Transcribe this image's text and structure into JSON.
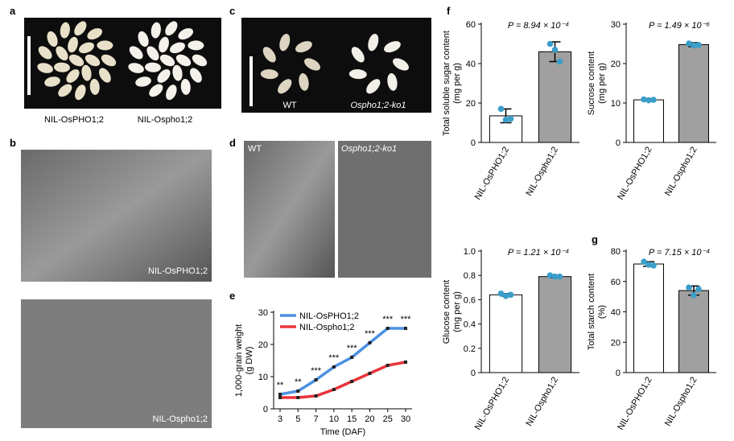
{
  "figure": {
    "panel_labels": [
      "a",
      "b",
      "c",
      "d",
      "e",
      "f",
      "g"
    ],
    "a_labels": [
      "NIL-OsPHO1;2",
      "NIL-Ospho1;2"
    ],
    "b_labels": [
      "NIL-OsPHO1;2",
      "NIL-Ospho1;2"
    ],
    "c_labels": [
      "WT",
      "Ospho1;2-ko1"
    ],
    "d_labels": [
      "WT",
      "Ospho1;2-ko1"
    ]
  },
  "chart_data": [
    {
      "type": "line",
      "ylabel": [
        "1,000-grain weight",
        "(g DW)"
      ],
      "xlabel": "Time (DAF)",
      "categories": [
        "3",
        "5",
        "7",
        "10",
        "15",
        "20",
        "25",
        "30"
      ],
      "series": [
        {
          "name": "NIL-OsPHO1;2",
          "color": "#4a90e2",
          "values": [
            4.5,
            5.5,
            9,
            13,
            16,
            20.5,
            25,
            25
          ]
        },
        {
          "name": "NIL-Ospho1;2",
          "color": "#e8343a",
          "values": [
            3.5,
            3.5,
            4,
            6,
            8.5,
            11,
            13.5,
            14.5
          ]
        }
      ],
      "annotations": [
        "**",
        "**",
        "***",
        "***",
        "***",
        "***",
        "***",
        "***"
      ],
      "ylim": [
        0,
        30
      ],
      "yticks": [
        0,
        10,
        20,
        30
      ],
      "legend": "top-left"
    },
    {
      "type": "bar",
      "ylabel": [
        "Total soluble sugar content",
        "(mg per g)"
      ],
      "annotation": "P = 8.94 × 10⁻⁴",
      "categories": [
        "NIL-OsPHO1;2",
        "NIL-Ospho1;2"
      ],
      "values": [
        13.5,
        46
      ],
      "errors": [
        3.5,
        5
      ],
      "points": [
        [
          17,
          11.5,
          12
        ],
        [
          50,
          47,
          41
        ]
      ],
      "colors": [
        "#ffffff",
        "#a0a0a0"
      ],
      "point_color": "#3a9ec9",
      "ylim": [
        0,
        60
      ],
      "yticks": [
        0,
        20,
        40,
        60
      ]
    },
    {
      "type": "bar",
      "ylabel": [
        "Sucrose content",
        "(mg per g)"
      ],
      "annotation": "P = 1.49 × 10⁻⁶",
      "categories": [
        "NIL-OsPHO1;2",
        "NIL-Ospho1;2"
      ],
      "values": [
        10.8,
        24.8
      ],
      "errors": [
        0.3,
        0.5
      ],
      "points": [
        [
          10.9,
          10.7,
          10.8
        ],
        [
          25.1,
          24.6,
          24.7
        ]
      ],
      "colors": [
        "#ffffff",
        "#a0a0a0"
      ],
      "point_color": "#3a9ec9",
      "ylim": [
        0,
        30
      ],
      "yticks": [
        0,
        10,
        20,
        30
      ]
    },
    {
      "type": "bar",
      "ylabel": [
        "Glucose content",
        "(mg per g)"
      ],
      "annotation": "P = 1.21 × 10⁻⁴",
      "categories": [
        "NIL-OsPHO1;2",
        "NIL-Ospho1;2"
      ],
      "values": [
        0.64,
        0.79
      ],
      "errors": [
        0.01,
        0.01
      ],
      "points": [
        [
          0.65,
          0.63,
          0.64
        ],
        [
          0.8,
          0.79,
          0.79
        ]
      ],
      "colors": [
        "#ffffff",
        "#a0a0a0"
      ],
      "point_color": "#3a9ec9",
      "ylim": [
        0,
        1
      ],
      "yticks": [
        0,
        0.2,
        0.4,
        0.6,
        0.8,
        {
          "value": 1,
          "label": "1.0"
        }
      ]
    },
    {
      "type": "bar",
      "ylabel": [
        "Total starch content",
        "(%)"
      ],
      "annotation": "P = 7.15 × 10⁻⁴",
      "categories": [
        "NIL-OsPHO1;2",
        "NIL-Ospho1;2"
      ],
      "values": [
        71.5,
        54
      ],
      "errors": [
        1.5,
        3
      ],
      "points": [
        [
          73,
          71,
          70.5
        ],
        [
          56,
          51,
          55
        ]
      ],
      "colors": [
        "#ffffff",
        "#a0a0a0"
      ],
      "point_color": "#3a9ec9",
      "ylim": [
        0,
        80
      ],
      "yticks": [
        0,
        20,
        40,
        60,
        80
      ]
    }
  ]
}
